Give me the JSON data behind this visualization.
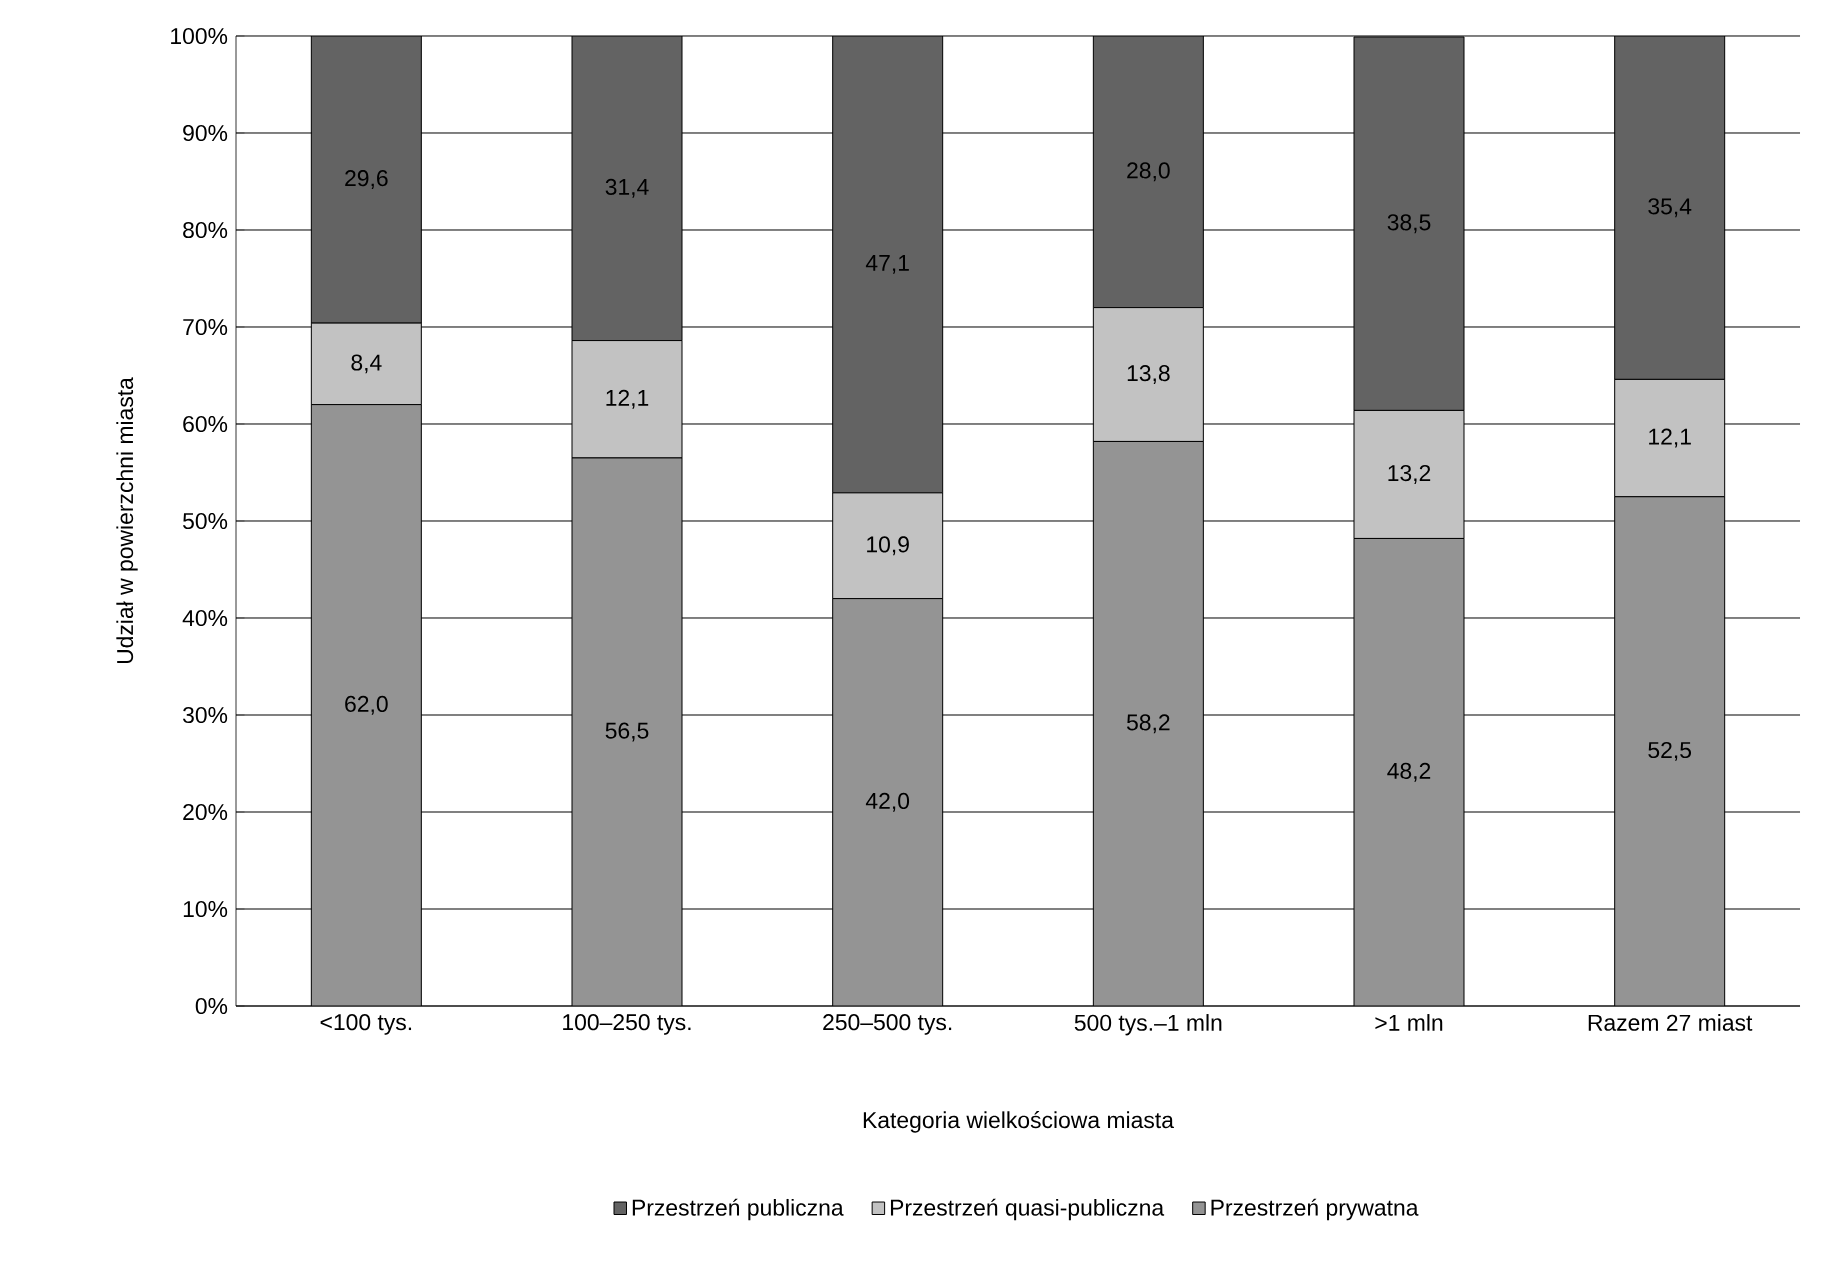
{
  "chart_data": {
    "type": "bar",
    "stacked": true,
    "xlabel": "Kategoria wielkościowa miasta",
    "ylabel": "Udział w powierzchni miasta",
    "categories": [
      "<100 tys.",
      "100–250 tys.",
      "250–500 tys.",
      "500 tys.–1 mln",
      ">1 mln",
      "Razem 27 miast"
    ],
    "series": [
      {
        "name": "Przestrzeń prywatna",
        "color": "#949494",
        "values": [
          62.0,
          56.5,
          42.0,
          58.2,
          48.2,
          52.5
        ],
        "value_labels": [
          "62,0",
          "56,5",
          "42,0",
          "58,2",
          "48,2",
          "52,5"
        ]
      },
      {
        "name": "Przestrzeń quasi-publiczna",
        "color": "#c2c2c2",
        "values": [
          8.4,
          12.1,
          10.9,
          13.8,
          13.2,
          12.1
        ],
        "value_labels": [
          "8,4",
          "12,1",
          "10,9",
          "13,8",
          "13,2",
          "12,1"
        ]
      },
      {
        "name": "Przestrzeń publiczna",
        "color": "#636363",
        "values": [
          29.6,
          31.4,
          47.1,
          28.0,
          38.5,
          35.4
        ],
        "value_labels": [
          "29,6",
          "31,4",
          "47,1",
          "28,0",
          "38,5",
          "35,4"
        ]
      }
    ],
    "ylim": [
      0,
      100
    ],
    "yticks": [
      {
        "value": 0,
        "label": "0%"
      },
      {
        "value": 10,
        "label": "10%"
      },
      {
        "value": 20,
        "label": "20%"
      },
      {
        "value": 30,
        "label": "30%"
      },
      {
        "value": 40,
        "label": "40%"
      },
      {
        "value": 50,
        "label": "50%"
      },
      {
        "value": 60,
        "label": "60%"
      },
      {
        "value": 70,
        "label": "70%"
      },
      {
        "value": 80,
        "label": "80%"
      },
      {
        "value": 90,
        "label": "90%"
      },
      {
        "value": 100,
        "label": "100%"
      }
    ],
    "grid": "y",
    "legend": "bottom"
  }
}
